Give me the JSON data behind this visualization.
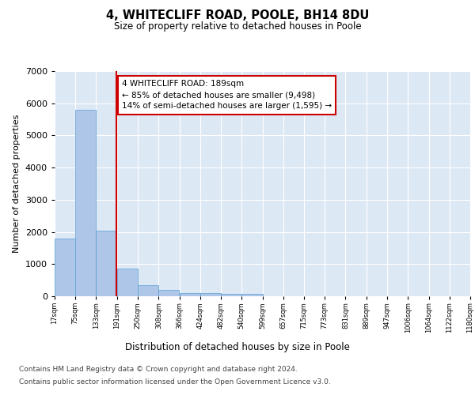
{
  "title": "4, WHITECLIFF ROAD, POOLE, BH14 8DU",
  "subtitle": "Size of property relative to detached houses in Poole",
  "xlabel": "Distribution of detached houses by size in Poole",
  "ylabel": "Number of detached properties",
  "bin_edges": [
    17,
    75,
    133,
    191,
    250,
    308,
    366,
    424,
    482,
    540,
    599,
    657,
    715,
    773,
    831,
    889,
    947,
    1006,
    1064,
    1122,
    1180
  ],
  "bar_heights": [
    1800,
    5800,
    2050,
    850,
    350,
    200,
    110,
    100,
    80,
    70,
    10,
    5,
    5,
    3,
    2,
    2,
    1,
    1,
    1,
    1
  ],
  "bar_color": "#aec6e8",
  "bar_edge_color": "#5a9fd4",
  "property_line_x": 189,
  "property_line_color": "#cc0000",
  "ylim": [
    0,
    7000
  ],
  "annotation_text": "4 WHITECLIFF ROAD: 189sqm\n← 85% of detached houses are smaller (9,498)\n14% of semi-detached houses are larger (1,595) →",
  "annotation_box_color": "#cc0000",
  "footer_line1": "Contains HM Land Registry data © Crown copyright and database right 2024.",
  "footer_line2": "Contains public sector information licensed under the Open Government Licence v3.0.",
  "plot_background_color": "#dde8f5"
}
